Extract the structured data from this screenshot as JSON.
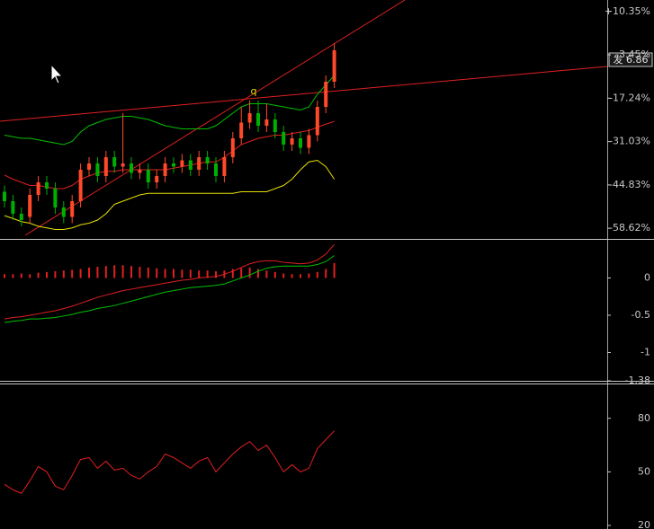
{
  "chart_data": [
    {
      "type": "candlestick",
      "price_tag": "发 6.86",
      "marker_label": "q",
      "up_color": "#ff4a2a",
      "down_color": "#00b000",
      "open": [
        -47,
        -50,
        -54,
        -55,
        -48,
        -44,
        -46,
        -52,
        -55,
        -50,
        -40,
        -38,
        -42,
        -36,
        -39,
        -38,
        -41,
        -40,
        -44,
        -42,
        -38,
        -39,
        -37,
        -40,
        -36,
        -38,
        -42,
        -36,
        -30,
        -25,
        -22,
        -26,
        -24,
        -28,
        -32,
        -30,
        -33,
        -29,
        -20,
        -12
      ],
      "close": [
        -50,
        -54,
        -56,
        -48,
        -44,
        -46,
        -52,
        -55,
        -50,
        -40,
        -38,
        -42,
        -36,
        -39,
        -38,
        -41,
        -40,
        -44,
        -42,
        -38,
        -39,
        -37,
        -40,
        -36,
        -38,
        -42,
        -36,
        -30,
        -25,
        -22,
        -26,
        -24,
        -28,
        -32,
        -30,
        -33,
        -29,
        -20,
        -12,
        -2
      ],
      "high": [
        -45,
        -48,
        -52,
        -46,
        -42,
        -42,
        -44,
        -50,
        -48,
        -38,
        -36,
        -36,
        -34,
        -34,
        -22,
        -36,
        -38,
        -38,
        -40,
        -36,
        -36,
        -35,
        -35,
        -34,
        -34,
        -36,
        -34,
        -28,
        -20,
        -18,
        -18,
        -19,
        -22,
        -26,
        -28,
        -28,
        -27,
        -18,
        -10,
        0.3
      ],
      "low": [
        -52,
        -56,
        -58,
        -57,
        -50,
        -48,
        -54,
        -57,
        -57,
        -52,
        -42,
        -44,
        -44,
        -41,
        -41,
        -43,
        -43,
        -46,
        -46,
        -44,
        -41,
        -41,
        -42,
        -42,
        -40,
        -44,
        -44,
        -38,
        -32,
        -27,
        -28,
        -28,
        -30,
        -34,
        -34,
        -35,
        -35,
        -31,
        -22,
        -14
      ],
      "series": [
        {
          "name": "UPPER",
          "color": "#00c000",
          "values": [
            -29,
            -29.5,
            -30,
            -30,
            -30.5,
            -31,
            -31.5,
            -32,
            -31,
            -28,
            -26,
            -25,
            -24,
            -23.5,
            -23,
            -23,
            -23.5,
            -24,
            -25,
            -26,
            -26.5,
            -27,
            -27,
            -27,
            -27,
            -26,
            -24,
            -22,
            -20,
            -19,
            -19,
            -19,
            -19.5,
            -20,
            -20.5,
            -21,
            -20,
            -16,
            -13,
            -10
          ]
        },
        {
          "name": "MID",
          "color": "#e02020",
          "values": [
            -41.7,
            -43,
            -44,
            -45,
            -45,
            -45.5,
            -46,
            -46,
            -45,
            -43,
            -42,
            -41,
            -40.5,
            -40.5,
            -40,
            -40,
            -40,
            -40,
            -40,
            -40,
            -39.5,
            -39,
            -38.5,
            -38,
            -37.5,
            -37.5,
            -36,
            -34,
            -32,
            -31,
            -30,
            -29.5,
            -29,
            -29,
            -28.5,
            -28,
            -27.5,
            -26.5,
            -25.5,
            -24.6
          ]
        },
        {
          "name": "LOWER",
          "color": "#e8e000",
          "values": [
            -54.6,
            -55.5,
            -56.5,
            -57,
            -58,
            -58.5,
            -59,
            -59,
            -58.5,
            -57.5,
            -57,
            -56,
            -54,
            -51,
            -50,
            -49,
            -48,
            -47.5,
            -47.5,
            -47.5,
            -47.5,
            -47.5,
            -47.5,
            -47.5,
            -47.5,
            -47.5,
            -47.5,
            -47.5,
            -47,
            -47,
            -47,
            -47,
            -46,
            -45,
            -43,
            -40,
            -37.5,
            -37,
            -39,
            -43
          ]
        }
      ],
      "ylim": [
        -62,
        14
      ],
      "yticks": [
        {
          "value": 10.35,
          "label": "+10.35%"
        },
        {
          "value": -3.45,
          "label": "-3.45%"
        },
        {
          "value": -17.24,
          "label": "-17.24%"
        },
        {
          "value": -31.03,
          "label": "-31.03%"
        },
        {
          "value": -44.83,
          "label": "-44.83%"
        },
        {
          "value": -58.62,
          "label": "-58.62%"
        }
      ]
    },
    {
      "type": "bar",
      "color": "#e02020",
      "values": [
        0.05,
        0.05,
        0.06,
        0.05,
        0.07,
        0.08,
        0.09,
        0.1,
        0.11,
        0.12,
        0.14,
        0.15,
        0.16,
        0.17,
        0.17,
        0.16,
        0.15,
        0.14,
        0.13,
        0.12,
        0.12,
        0.11,
        0.11,
        0.1,
        0.1,
        0.09,
        0.1,
        0.12,
        0.13,
        0.14,
        0.12,
        0.1,
        0.08,
        0.06,
        0.05,
        0.05,
        0.06,
        0.08,
        0.12,
        0.2
      ],
      "series": [
        {
          "name": "DIF",
          "color": "#e02020",
          "values": [
            -0.55,
            -0.53,
            -0.52,
            -0.5,
            -0.48,
            -0.46,
            -0.44,
            -0.41,
            -0.38,
            -0.34,
            -0.3,
            -0.26,
            -0.23,
            -0.2,
            -0.17,
            -0.15,
            -0.13,
            -0.11,
            -0.09,
            -0.07,
            -0.05,
            -0.03,
            -0.02,
            0,
            0.01,
            0.02,
            0.05,
            0.09,
            0.14,
            0.19,
            0.22,
            0.23,
            0.23,
            0.21,
            0.2,
            0.19,
            0.2,
            0.24,
            0.32,
            0.45
          ]
        },
        {
          "name": "DEA",
          "color": "#00c000",
          "values": [
            -0.6,
            -0.58,
            -0.57,
            -0.55,
            -0.55,
            -0.54,
            -0.53,
            -0.51,
            -0.49,
            -0.46,
            -0.44,
            -0.41,
            -0.39,
            -0.37,
            -0.34,
            -0.31,
            -0.28,
            -0.25,
            -0.22,
            -0.19,
            -0.17,
            -0.15,
            -0.13,
            -0.12,
            -0.11,
            -0.1,
            -0.08,
            -0.04,
            0,
            0.04,
            0.09,
            0.13,
            0.15,
            0.16,
            0.16,
            0.16,
            0.16,
            0.18,
            0.22,
            0.3
          ]
        }
      ],
      "ylim": [
        -1.38,
        0.5
      ],
      "yticks": [
        0,
        -0.5,
        -1,
        -1.38
      ]
    },
    {
      "type": "line",
      "series": [
        {
          "name": "RSI",
          "color": "#e02020",
          "values": [
            43,
            40,
            38,
            45,
            53,
            50,
            42,
            40,
            48,
            57,
            58,
            52,
            56,
            51,
            52,
            48,
            46,
            50,
            53,
            60,
            58,
            55,
            52,
            56,
            58,
            50,
            55,
            60,
            64,
            67,
            62,
            65,
            58,
            50,
            54,
            50,
            52,
            63,
            68,
            73
          ]
        }
      ],
      "ylim": [
        18,
        99
      ],
      "yticks": [
        80,
        50,
        20
      ]
    }
  ]
}
